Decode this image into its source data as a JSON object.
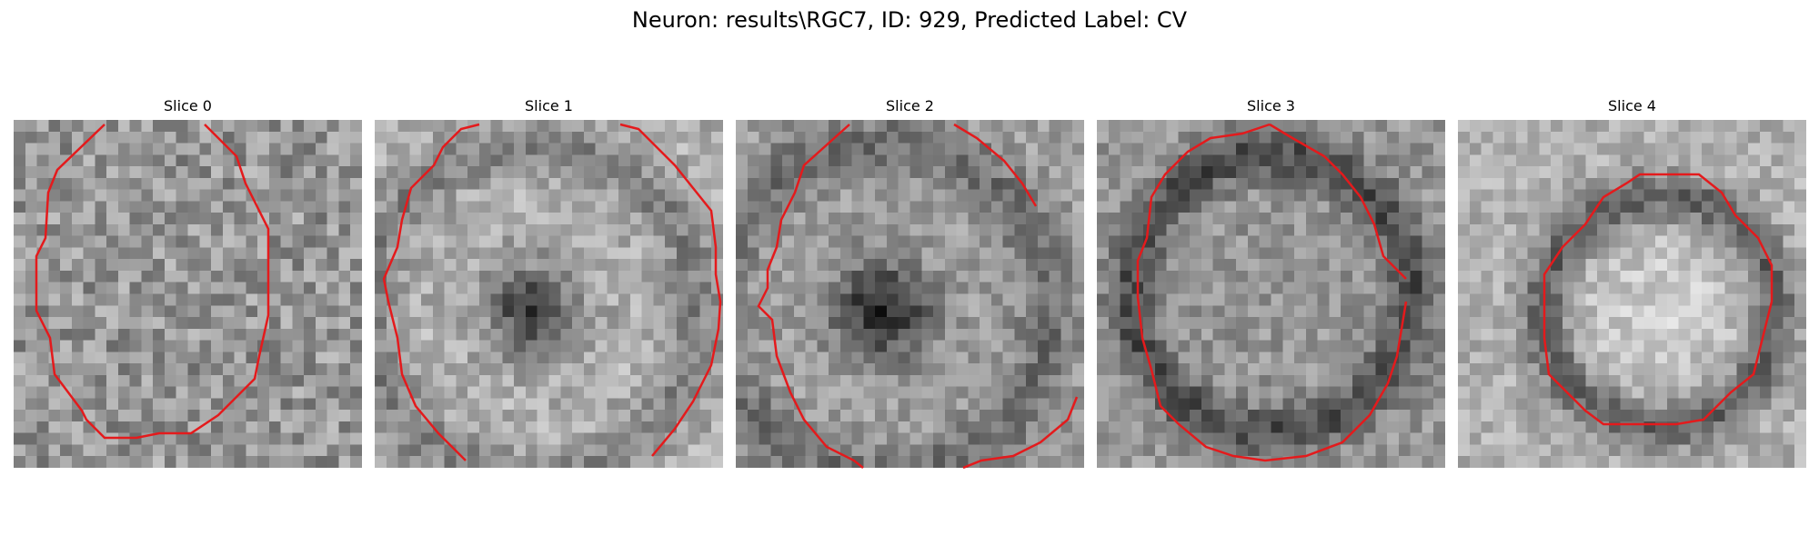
{
  "figure": {
    "title": "Neuron: results\\RGC7, ID: 929, Predicted Label: CV"
  },
  "contour_color": "#e41a1c",
  "slices": [
    {
      "label": "Slice 0"
    },
    {
      "label": "Slice 1"
    },
    {
      "label": "Slice 2"
    },
    {
      "label": "Slice 3"
    },
    {
      "label": "Slice 4"
    }
  ]
}
